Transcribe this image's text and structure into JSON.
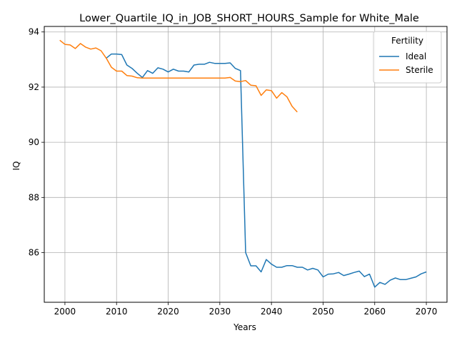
{
  "chart_data": {
    "type": "line",
    "title": "Lower_Quartile_IQ_in_JOB_SHORT_HOURS_Sample for White_Male",
    "xlabel": "Years",
    "ylabel": "IQ",
    "xlim": [
      1996,
      2074
    ],
    "ylim": [
      84.2,
      94.2
    ],
    "xticks": [
      2000,
      2010,
      2020,
      2030,
      2040,
      2050,
      2060,
      2070
    ],
    "yticks": [
      86,
      88,
      90,
      92,
      94
    ],
    "grid": true,
    "legend": {
      "title": "Fertility",
      "placement": "top-right"
    },
    "series": [
      {
        "name": "Ideal",
        "color": "#1f77b4",
        "x": [
          2008,
          2009,
          2010,
          2011,
          2012,
          2013,
          2014,
          2015,
          2016,
          2017,
          2018,
          2019,
          2020,
          2021,
          2022,
          2023,
          2024,
          2025,
          2026,
          2027,
          2028,
          2029,
          2030,
          2031,
          2032,
          2033,
          2034,
          2035,
          2036,
          2037,
          2038,
          2039,
          2040,
          2041,
          2042,
          2043,
          2044,
          2045,
          2046,
          2047,
          2048,
          2049,
          2050,
          2051,
          2052,
          2053,
          2054,
          2055,
          2056,
          2057,
          2058,
          2059,
          2060,
          2061,
          2062,
          2063,
          2064,
          2065,
          2066,
          2067,
          2068,
          2069,
          2070
        ],
        "values": [
          93.05,
          93.2,
          93.2,
          93.18,
          92.8,
          92.68,
          92.5,
          92.35,
          92.6,
          92.5,
          92.7,
          92.65,
          92.55,
          92.65,
          92.58,
          92.58,
          92.55,
          92.8,
          92.83,
          92.83,
          92.9,
          92.86,
          92.86,
          92.86,
          92.88,
          92.68,
          92.6,
          86.0,
          85.52,
          85.52,
          85.3,
          85.75,
          85.58,
          85.47,
          85.47,
          85.53,
          85.53,
          85.47,
          85.47,
          85.37,
          85.43,
          85.37,
          85.12,
          85.22,
          85.23,
          85.28,
          85.17,
          85.22,
          85.28,
          85.33,
          85.13,
          85.22,
          84.75,
          84.92,
          84.85,
          85.0,
          85.08,
          85.02,
          85.02,
          85.07,
          85.12,
          85.23,
          85.3
        ]
      },
      {
        "name": "Sterile",
        "color": "#ff7f0e",
        "x": [
          1999,
          2000,
          2001,
          2002,
          2003,
          2004,
          2005,
          2006,
          2007,
          2008,
          2009,
          2010,
          2011,
          2012,
          2013,
          2014,
          2015,
          2016,
          2017,
          2018,
          2019,
          2020,
          2021,
          2022,
          2023,
          2024,
          2025,
          2026,
          2027,
          2028,
          2029,
          2030,
          2031,
          2032,
          2033,
          2034,
          2035,
          2036,
          2037,
          2038,
          2039,
          2040,
          2041,
          2042,
          2043,
          2044,
          2045
        ],
        "values": [
          93.7,
          93.55,
          93.53,
          93.4,
          93.58,
          93.45,
          93.38,
          93.42,
          93.32,
          93.05,
          92.72,
          92.58,
          92.58,
          92.42,
          92.4,
          92.34,
          92.33,
          92.33,
          92.33,
          92.33,
          92.33,
          92.33,
          92.33,
          92.33,
          92.33,
          92.33,
          92.33,
          92.33,
          92.33,
          92.33,
          92.33,
          92.33,
          92.33,
          92.35,
          92.22,
          92.2,
          92.24,
          92.07,
          92.05,
          91.7,
          91.9,
          91.87,
          91.6,
          91.8,
          91.65,
          91.3,
          91.1
        ]
      }
    ]
  }
}
